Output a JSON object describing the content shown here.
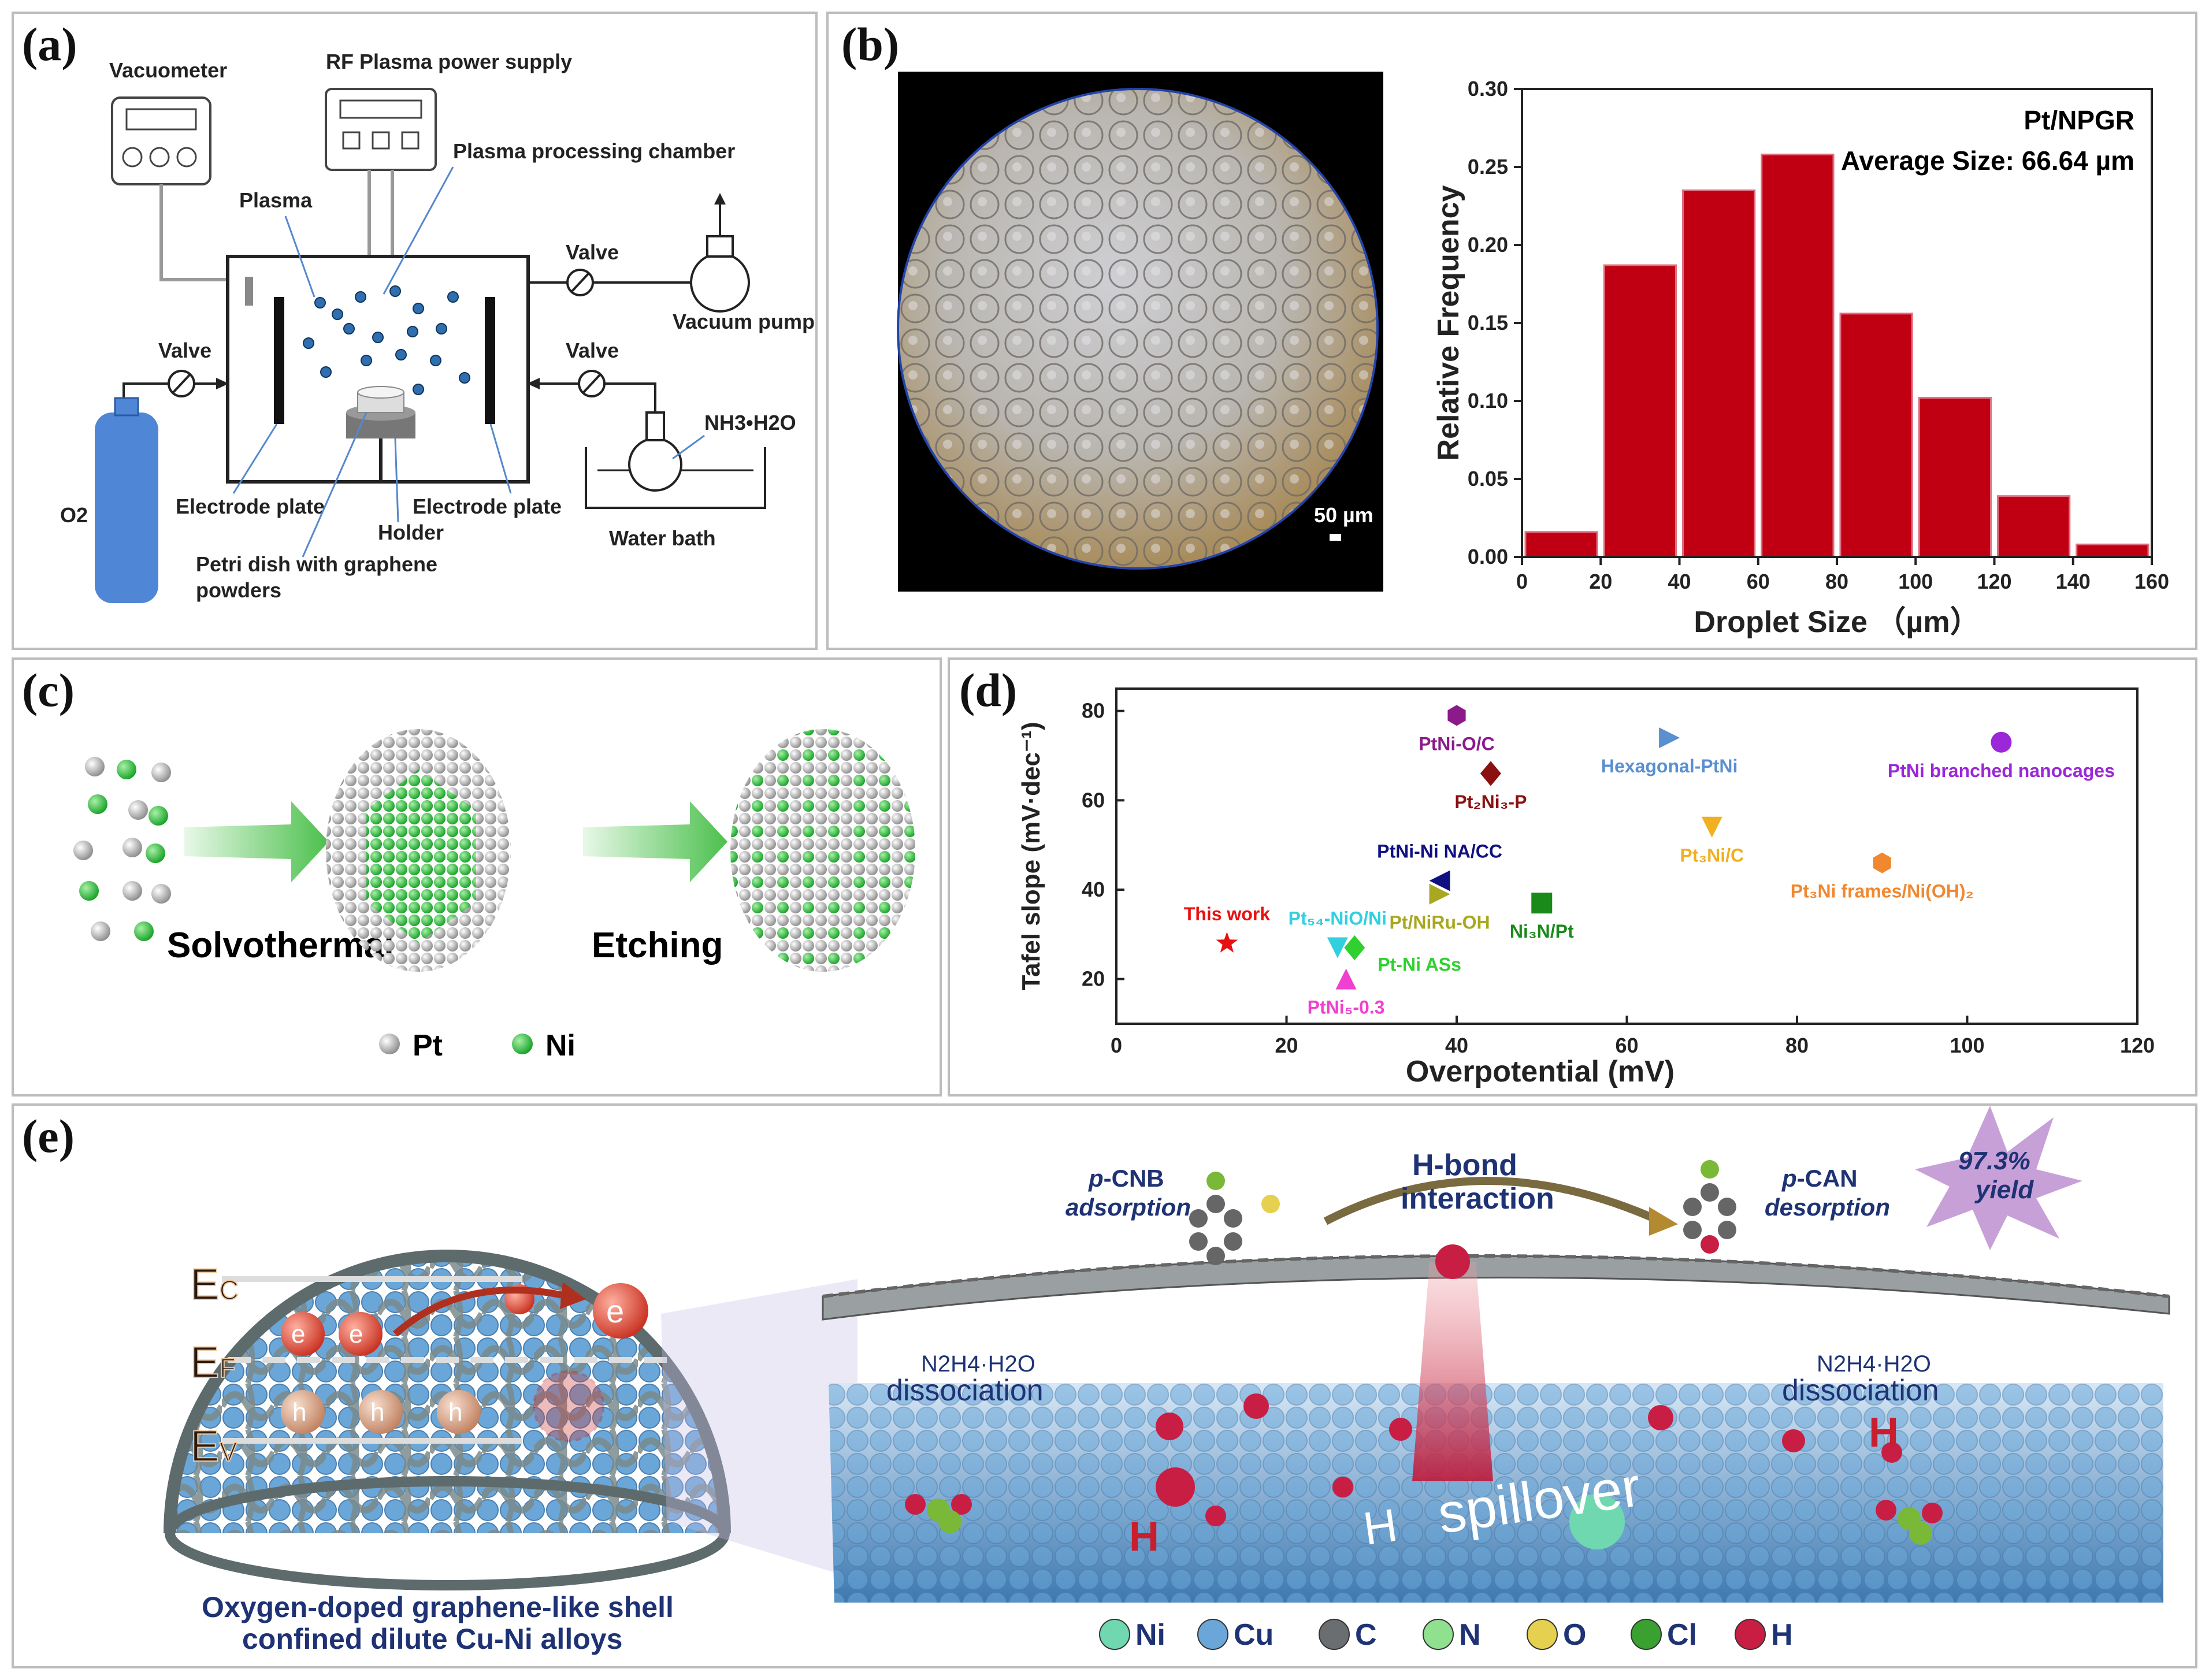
{
  "panels": {
    "a": {
      "label": "(a)",
      "vacuometer": "Vacuometer",
      "rf_power": "RF Plasma power supply",
      "plasma": "Plasma",
      "chamber": "Plasma processing chamber",
      "valve_top": "Valve",
      "valve_left": "Valve",
      "valve_right": "Valve",
      "vacuum_pump": "Vacuum pump",
      "nh3": "NH3•H2O",
      "o2": "O2",
      "electrode_left": "Electrode plate",
      "electrode_right": "Electrode plate",
      "holder": "Holder",
      "petri_line1": "Petri dish with graphene",
      "petri_line2": "powders",
      "water_bath": "Water bath"
    },
    "b": {
      "label": "(b)",
      "scale_bar": "50 µm"
    },
    "c": {
      "label": "(c)",
      "solvothermal": "Solvothermal",
      "etching": "Etching",
      "legend_pt": "Pt",
      "legend_ni": "Ni"
    },
    "d": {
      "label": "(d)"
    },
    "e": {
      "label": "(e)",
      "ec": "E",
      "ec_sub": "C",
      "ef": "E",
      "ef_sub": "F",
      "ev": "E",
      "ev_sub": "V",
      "electron": "e",
      "hole": "h",
      "pcnb_1": "p",
      "pcnb_2": "-CNB",
      "pcnb_3": "adsorption",
      "hbond_1": "H-bond",
      "hbond_2": "interaction",
      "pcan_1": "p",
      "pcan_2": "-CAN",
      "pcan_3": "desorption",
      "yield_1": "97.3%",
      "yield_2": "yield",
      "n2h4_left": "N2H4·H2O",
      "diss_left": "dissociation",
      "n2h4_right": "N2H4·H2O",
      "diss_right": "dissociation",
      "h_left": "H",
      "h_spill": "H",
      "spillover": "spillover",
      "h_right": "H",
      "caption_1": "Oxygen-doped graphene-like shell",
      "caption_2": "confined dilute Cu-Ni alloys",
      "legend": [
        "Ni",
        "Cu",
        "C",
        "N",
        "O",
        "Cl",
        "H"
      ]
    }
  },
  "colors": {
    "bar": "#c00012",
    "ni_green": "#2ecc40",
    "cu_blue": "#6aa7d8",
    "shell_gray": "#7b8a8c"
  },
  "chart_data": [
    {
      "type": "bar",
      "title": "",
      "annotation_1": "Pt/NPGR",
      "annotation_2": "Average Size: 66.64 µm",
      "xlabel": "Droplet Size （µm）",
      "ylabel": "Relative Frequency",
      "xlim": [
        0,
        160
      ],
      "ylim": [
        0,
        0.3
      ],
      "xticks": [
        "0",
        "20",
        "40",
        "60",
        "80",
        "100",
        "120",
        "140",
        "160"
      ],
      "yticks": [
        "0.00",
        "0.05",
        "0.10",
        "0.15",
        "0.20",
        "0.25",
        "0.30"
      ],
      "bins": [
        {
          "from": 0,
          "to": 20,
          "value": 0.016
        },
        {
          "from": 20,
          "to": 40,
          "value": 0.187
        },
        {
          "from": 40,
          "to": 60,
          "value": 0.235
        },
        {
          "from": 60,
          "to": 80,
          "value": 0.258
        },
        {
          "from": 80,
          "to": 100,
          "value": 0.156
        },
        {
          "from": 100,
          "to": 120,
          "value": 0.102
        },
        {
          "from": 120,
          "to": 140,
          "value": 0.039
        },
        {
          "from": 140,
          "to": 160,
          "value": 0.008
        }
      ]
    },
    {
      "type": "scatter",
      "title": "",
      "xlabel": "Overpotential (mV)",
      "ylabel": "Tafel slope (mV·dec⁻¹)",
      "xlim": [
        0,
        120
      ],
      "ylim": [
        10,
        85
      ],
      "xticks": [
        "0",
        "20",
        "40",
        "60",
        "80",
        "100",
        "120"
      ],
      "yticks": [
        "20",
        "40",
        "60",
        "80"
      ],
      "points": [
        {
          "name": "This work",
          "x": 13,
          "y": 28,
          "marker": "star",
          "color": "#e81010",
          "label_anchor": "above"
        },
        {
          "name": "PtNi-O/C",
          "x": 40,
          "y": 79,
          "marker": "hexagon",
          "color": "#8b1a8b",
          "label_anchor": "below"
        },
        {
          "name": "Pt₂Ni₃-P",
          "x": 44,
          "y": 66,
          "marker": "diamond",
          "color": "#8b1010",
          "label_anchor": "below"
        },
        {
          "name": "Hexagonal-PtNi",
          "x": 65,
          "y": 74,
          "marker": "triangle-right",
          "color": "#5a8fd0",
          "label_anchor": "below"
        },
        {
          "name": "PtNi branched nanocages",
          "x": 104,
          "y": 73,
          "marker": "circle",
          "color": "#9a28d8",
          "label_anchor": "below"
        },
        {
          "name": "PtNi-Ni NA/CC",
          "x": 38,
          "y": 42,
          "marker": "triangle-left",
          "color": "#101080",
          "label_anchor": "above"
        },
        {
          "name": "Pt₃Ni/C",
          "x": 70,
          "y": 54,
          "marker": "triangle-down",
          "color": "#f0b020",
          "label_anchor": "below"
        },
        {
          "name": "Pt₃Ni frames/Ni(OH)₂",
          "x": 90,
          "y": 46,
          "marker": "hexagon",
          "color": "#f08830",
          "label_anchor": "below"
        },
        {
          "name": "Pt/NiRu-OH",
          "x": 38,
          "y": 39,
          "marker": "triangle-right",
          "color": "#a8a820",
          "label_anchor": "below"
        },
        {
          "name": "Ni₃N/Pt",
          "x": 50,
          "y": 37,
          "marker": "square",
          "color": "#1a8a1a",
          "label_anchor": "below"
        },
        {
          "name": "Pt₅₄-NiO/Ni",
          "x": 26,
          "y": 27,
          "marker": "triangle-down",
          "color": "#30d0e0",
          "label_anchor": "above"
        },
        {
          "name": "Pt-Ni ASs",
          "x": 28,
          "y": 27,
          "marker": "diamond",
          "color": "#30d030",
          "label_anchor": "right"
        },
        {
          "name": "PtNi₅-0.3",
          "x": 27,
          "y": 20,
          "marker": "triangle-up",
          "color": "#f040d0",
          "label_anchor": "below"
        }
      ]
    }
  ]
}
